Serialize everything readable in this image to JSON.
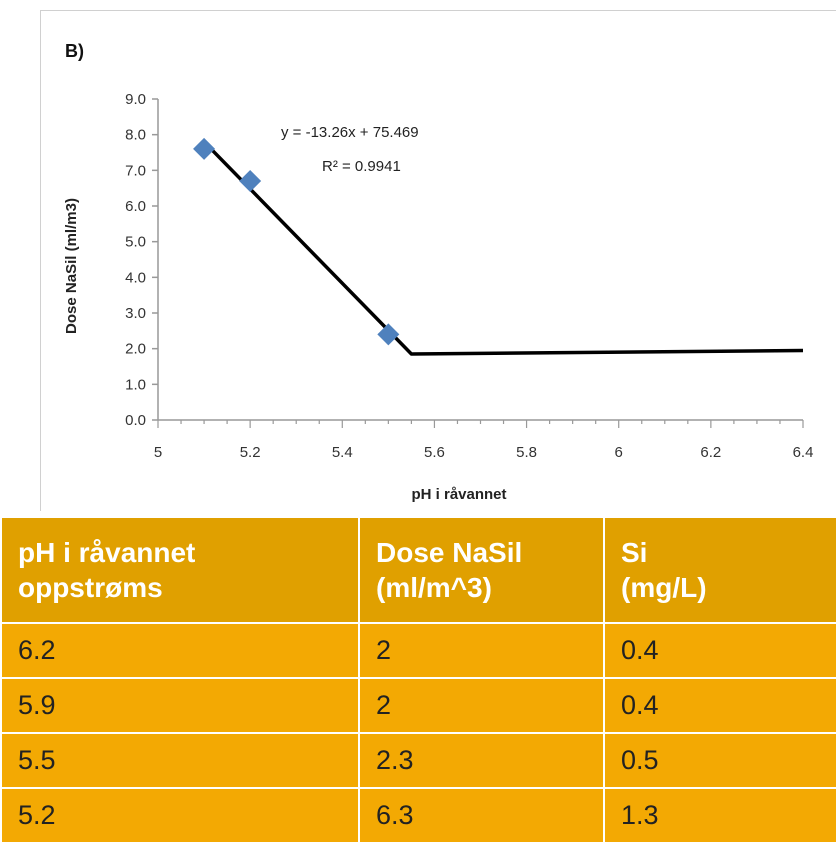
{
  "chart_data": {
    "type": "scatter",
    "panel_label": "B)",
    "xlabel": "pH i råvannet",
    "ylabel": "Dose NaSil (ml/m3)",
    "xlim": [
      5,
      6.4
    ],
    "ylim": [
      0,
      9
    ],
    "x_ticks": [
      "5",
      "5.2",
      "5.4",
      "5.6",
      "5.8",
      "6",
      "6.2",
      "6.4"
    ],
    "y_ticks": [
      "0.0",
      "1.0",
      "2.0",
      "3.0",
      "4.0",
      "5.0",
      "6.0",
      "7.0",
      "8.0",
      "9.0"
    ],
    "points": [
      {
        "x": 5.1,
        "y": 7.6
      },
      {
        "x": 5.2,
        "y": 6.7
      },
      {
        "x": 5.5,
        "y": 2.4
      }
    ],
    "fit_line": [
      {
        "x": 5.1,
        "y": 7.8
      },
      {
        "x": 5.55,
        "y": 1.85
      },
      {
        "x": 6.4,
        "y": 1.95
      }
    ],
    "annotation": {
      "equation": "y = -13.26x + 75.469",
      "r_squared": "R² = 0.9941"
    },
    "colors": {
      "marker": "#4f81bd",
      "line": "#000000"
    }
  },
  "table": {
    "headers": [
      [
        "pH i råvannet",
        "oppstrøms"
      ],
      [
        "Dose NaSil",
        "(ml/m^3)"
      ],
      [
        "Si",
        "(mg/L)"
      ]
    ],
    "rows": [
      [
        "6.2",
        "2",
        "0.4"
      ],
      [
        "5.9",
        "2",
        "0.4"
      ],
      [
        "5.5",
        "2.3",
        "0.5"
      ],
      [
        "5.2",
        "6.3",
        "1.3"
      ]
    ],
    "colors": {
      "header_bg": "#e0a000",
      "row_bg": "#f3a903"
    }
  }
}
